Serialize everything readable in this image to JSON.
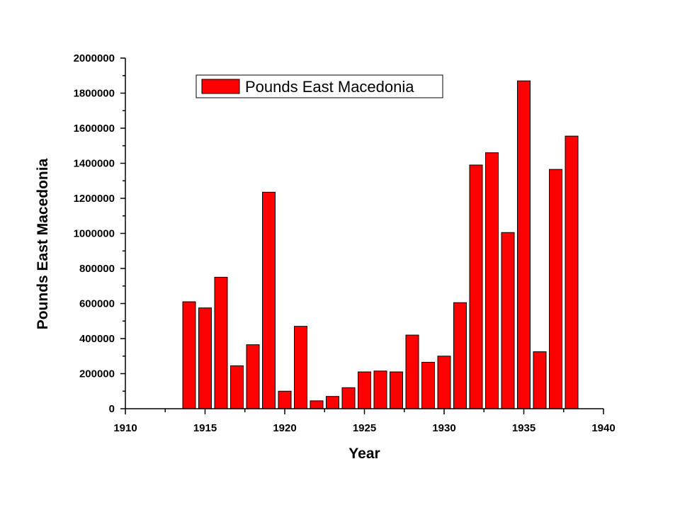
{
  "chart_data": {
    "type": "bar",
    "xlabel": "Year",
    "ylabel": "Pounds East Macedonia",
    "xlim": [
      1910,
      1940
    ],
    "ylim": [
      0,
      2000000
    ],
    "x_ticks": [
      "1910",
      "1915",
      "1920",
      "1925",
      "1930",
      "1935",
      "1940"
    ],
    "y_ticks": [
      "0",
      "200000",
      "400000",
      "600000",
      "800000",
      "1000000",
      "1200000",
      "1400000",
      "1600000",
      "1800000",
      "2000000"
    ],
    "legend_position": "top-center",
    "grid": false,
    "series": [
      {
        "name": "Pounds East Macedonia",
        "color": "#ff0000",
        "x": [
          1914,
          1915,
          1916,
          1917,
          1918,
          1919,
          1920,
          1921,
          1922,
          1923,
          1924,
          1925,
          1926,
          1927,
          1928,
          1929,
          1930,
          1931,
          1932,
          1933,
          1934,
          1935,
          1936,
          1937,
          1938
        ],
        "values": [
          610000,
          575000,
          750000,
          245000,
          365000,
          1235000,
          100000,
          470000,
          45000,
          70000,
          120000,
          210000,
          215000,
          210000,
          420000,
          265000,
          300000,
          605000,
          1390000,
          1460000,
          1005000,
          1870000,
          325000,
          1365000,
          1555000
        ]
      }
    ]
  }
}
